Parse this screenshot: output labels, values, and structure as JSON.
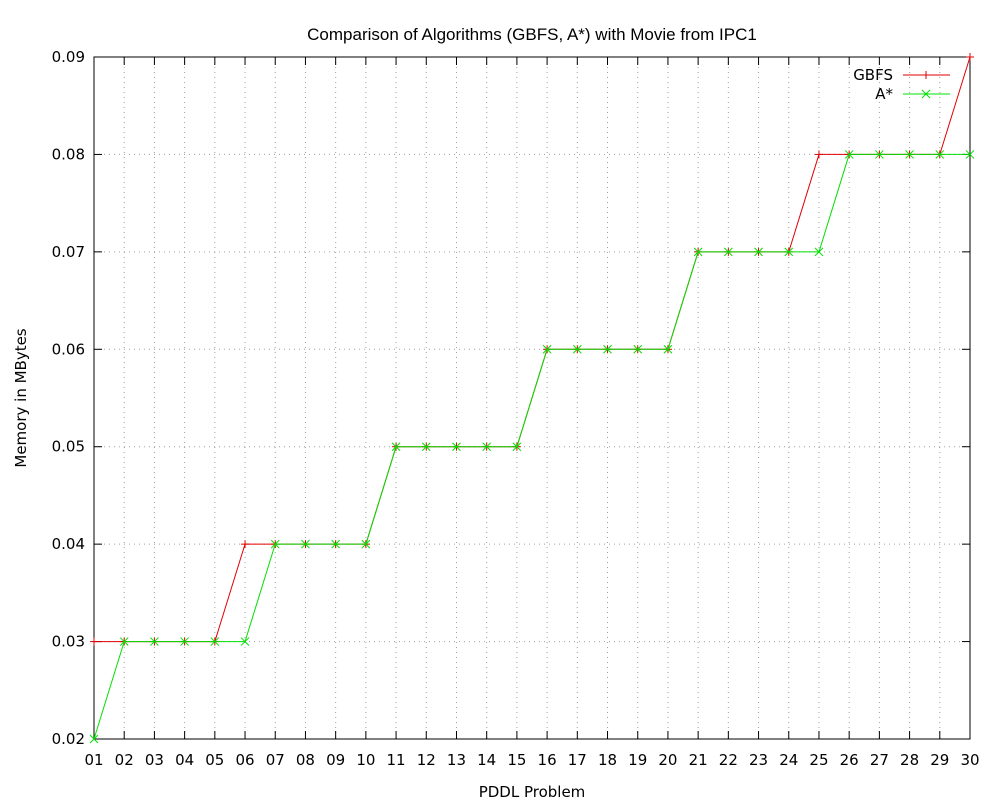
{
  "chart_data": {
    "type": "line",
    "title": "Comparison of Algorithms (GBFS, A*) with Movie from IPC1",
    "xlabel": "PDDL Problem",
    "ylabel": "Memory in MBytes",
    "categories": [
      "01",
      "02",
      "03",
      "04",
      "05",
      "06",
      "07",
      "08",
      "09",
      "10",
      "11",
      "12",
      "13",
      "14",
      "15",
      "16",
      "17",
      "18",
      "19",
      "20",
      "21",
      "22",
      "23",
      "24",
      "25",
      "26",
      "27",
      "28",
      "29",
      "30"
    ],
    "ylim": [
      0.02,
      0.09
    ],
    "yticks": [
      "0.02",
      "0.03",
      "0.04",
      "0.05",
      "0.06",
      "0.07",
      "0.08",
      "0.09"
    ],
    "grid": true,
    "legend": "top-right",
    "series": [
      {
        "name": "GBFS",
        "color": "#e00000",
        "marker": "plus",
        "values": [
          0.03,
          0.03,
          0.03,
          0.03,
          0.03,
          0.04,
          0.04,
          0.04,
          0.04,
          0.04,
          0.05,
          0.05,
          0.05,
          0.05,
          0.05,
          0.06,
          0.06,
          0.06,
          0.06,
          0.06,
          0.07,
          0.07,
          0.07,
          0.07,
          0.08,
          0.08,
          0.08,
          0.08,
          0.08,
          0.09
        ]
      },
      {
        "name": "A*",
        "color": "#00e000",
        "marker": "cross",
        "values": [
          0.02,
          0.03,
          0.03,
          0.03,
          0.03,
          0.03,
          0.04,
          0.04,
          0.04,
          0.04,
          0.05,
          0.05,
          0.05,
          0.05,
          0.05,
          0.06,
          0.06,
          0.06,
          0.06,
          0.06,
          0.07,
          0.07,
          0.07,
          0.07,
          0.07,
          0.08,
          0.08,
          0.08,
          0.08,
          0.08
        ]
      }
    ]
  }
}
